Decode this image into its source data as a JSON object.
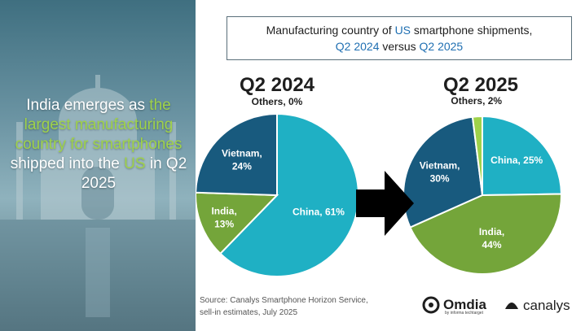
{
  "headline": {
    "part1": "India emerges as ",
    "part2": "the largest manufacturing country for smartphones",
    "part3": " shipped into the ",
    "part4": "US",
    "part5": " in Q2 2025"
  },
  "title": {
    "line1_a": "Manufacturing country of ",
    "line1_b": "US",
    "line1_c": " smartphone shipments,",
    "line2_a": "Q2 2024",
    "line2_b": " versus ",
    "line2_c": "Q2 2025"
  },
  "colors": {
    "china": "#1fb0c4",
    "india": "#74a53a",
    "vietnam": "#185a7e",
    "others": "#9fd24a",
    "highlight": "#9fd24a",
    "title_blue": "#1f6fb2",
    "arrow": "#000000"
  },
  "chart_data": [
    {
      "type": "pie",
      "title": "Q2 2024",
      "slices": [
        {
          "label": "China, 61%",
          "name": "China",
          "value": 61,
          "color": "#1fb0c4"
        },
        {
          "label": "India, 13%",
          "name": "India",
          "value": 13,
          "color": "#74a53a"
        },
        {
          "label": "Vietnam, 24%",
          "name": "Vietnam",
          "value": 24,
          "color": "#185a7e"
        },
        {
          "label": "Others, 0%",
          "name": "Others",
          "value": 0,
          "color": "#9fd24a"
        }
      ]
    },
    {
      "type": "pie",
      "title": "Q2 2025",
      "slices": [
        {
          "label": "China, 25%",
          "name": "China",
          "value": 25,
          "color": "#1fb0c4"
        },
        {
          "label": "India, 44%",
          "name": "India",
          "value": 44,
          "color": "#74a53a"
        },
        {
          "label": "Vietnam, 30%",
          "name": "Vietnam",
          "value": 30,
          "color": "#185a7e"
        },
        {
          "label": "Others, 2%",
          "name": "Others",
          "value": 2,
          "color": "#9fd24a"
        }
      ]
    }
  ],
  "source": {
    "line1": "Source: Canalys Smartphone Horizon Service,",
    "line2": "sell-in estimates, July 2025"
  },
  "logos": {
    "omdia": "Omdia",
    "omdia_sub": "by informa techtarget",
    "canalys": "canalys"
  }
}
